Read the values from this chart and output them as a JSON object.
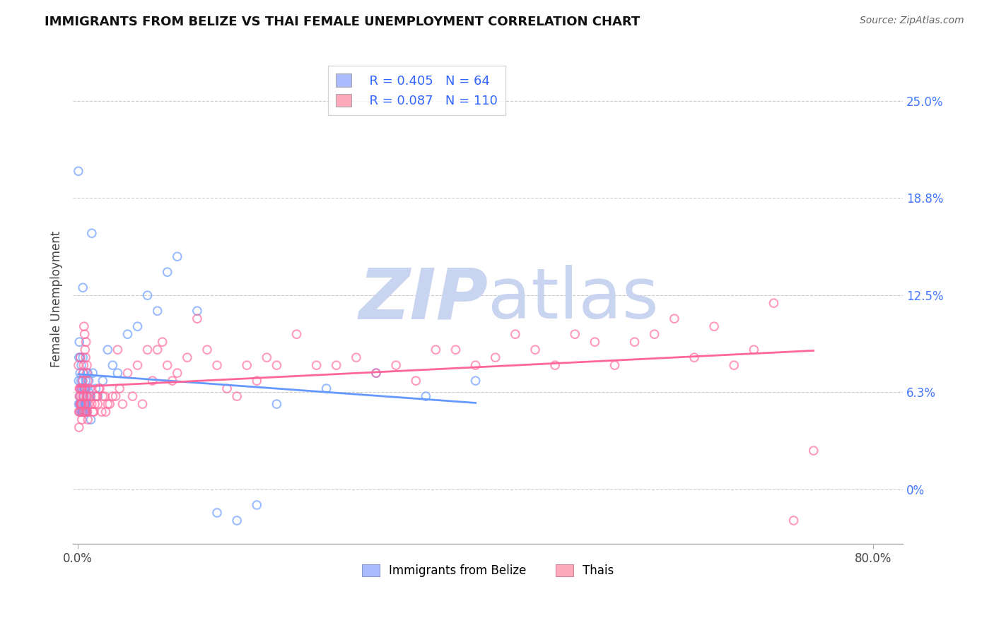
{
  "title": "IMMIGRANTS FROM BELIZE VS THAI FEMALE UNEMPLOYMENT CORRELATION CHART",
  "source": "Source: ZipAtlas.com",
  "ylabel": "Female Unemployment",
  "y_right_labels": [
    "0%",
    "6.3%",
    "12.5%",
    "18.8%",
    "25.0%"
  ],
  "y_right_values": [
    0.0,
    6.3,
    12.5,
    18.8,
    25.0
  ],
  "ylim": [
    -3.5,
    28.0
  ],
  "xlim": [
    -0.5,
    83.0
  ],
  "series": [
    {
      "name": "Immigrants from Belize",
      "color": "#6699ff",
      "R": 0.405,
      "N": 64,
      "x": [
        0.05,
        0.08,
        0.1,
        0.12,
        0.15,
        0.18,
        0.2,
        0.22,
        0.25,
        0.28,
        0.3,
        0.32,
        0.35,
        0.38,
        0.4,
        0.42,
        0.45,
        0.48,
        0.5,
        0.52,
        0.55,
        0.58,
        0.6,
        0.62,
        0.65,
        0.68,
        0.7,
        0.72,
        0.75,
        0.78,
        0.8,
        0.82,
        0.85,
        0.88,
        0.9,
        0.95,
        1.0,
        1.1,
        1.2,
        1.3,
        1.5,
        1.8,
        2.0,
        2.5,
        3.0,
        3.5,
        4.0,
        5.0,
        6.0,
        7.0,
        8.0,
        9.0,
        10.0,
        12.0,
        14.0,
        16.0,
        18.0,
        20.0,
        25.0,
        30.0,
        35.0,
        40.0,
        1.4,
        0.5
      ],
      "y": [
        20.5,
        7.0,
        5.5,
        8.5,
        9.5,
        6.0,
        5.5,
        7.5,
        8.5,
        5.0,
        5.5,
        7.0,
        8.0,
        6.5,
        6.5,
        5.0,
        5.0,
        7.0,
        8.5,
        5.5,
        5.0,
        7.5,
        6.5,
        6.0,
        6.5,
        5.0,
        5.5,
        6.5,
        5.5,
        7.0,
        5.0,
        5.5,
        6.5,
        5.5,
        5.0,
        6.0,
        7.5,
        7.0,
        6.0,
        4.5,
        7.5,
        6.5,
        6.0,
        7.0,
        9.0,
        8.0,
        7.5,
        10.0,
        10.5,
        12.5,
        11.5,
        14.0,
        15.0,
        11.5,
        -1.5,
        -2.0,
        -1.0,
        5.5,
        6.5,
        7.5,
        6.0,
        7.0,
        16.5,
        13.0
      ]
    },
    {
      "name": "Thais",
      "color": "#ff6699",
      "R": 0.087,
      "N": 110,
      "x": [
        0.05,
        0.1,
        0.15,
        0.2,
        0.25,
        0.3,
        0.35,
        0.4,
        0.45,
        0.5,
        0.55,
        0.6,
        0.65,
        0.7,
        0.75,
        0.8,
        0.85,
        0.9,
        0.95,
        1.0,
        1.1,
        1.2,
        1.4,
        1.6,
        1.8,
        2.0,
        2.2,
        2.5,
        2.8,
        3.0,
        3.5,
        4.0,
        4.5,
        5.0,
        5.5,
        6.0,
        6.5,
        7.0,
        7.5,
        8.0,
        8.5,
        9.0,
        9.5,
        10.0,
        11.0,
        12.0,
        13.0,
        14.0,
        15.0,
        16.0,
        17.0,
        18.0,
        19.0,
        20.0,
        22.0,
        24.0,
        26.0,
        28.0,
        30.0,
        32.0,
        34.0,
        36.0,
        38.0,
        40.0,
        42.0,
        44.0,
        46.0,
        48.0,
        50.0,
        52.0,
        54.0,
        56.0,
        58.0,
        60.0,
        62.0,
        64.0,
        66.0,
        68.0,
        70.0,
        72.0,
        0.12,
        0.16,
        0.19,
        0.23,
        0.27,
        0.32,
        0.38,
        0.42,
        0.48,
        0.52,
        0.58,
        0.62,
        0.68,
        0.72,
        0.78,
        0.82,
        0.88,
        0.92,
        0.98,
        1.3,
        1.5,
        1.7,
        1.9,
        2.1,
        2.4,
        2.7,
        3.2,
        3.8,
        4.2,
        74.0
      ],
      "y": [
        8.0,
        5.0,
        6.0,
        6.5,
        8.5,
        5.5,
        5.5,
        4.5,
        6.5,
        7.5,
        6.0,
        5.0,
        5.5,
        5.0,
        6.5,
        6.0,
        5.0,
        6.0,
        5.0,
        4.5,
        5.5,
        6.5,
        5.5,
        5.0,
        6.0,
        5.5,
        6.5,
        6.0,
        5.0,
        5.5,
        6.0,
        9.0,
        5.5,
        7.5,
        6.0,
        8.0,
        5.5,
        9.0,
        7.0,
        9.0,
        9.5,
        8.0,
        7.0,
        7.5,
        8.5,
        11.0,
        9.0,
        8.0,
        6.5,
        6.0,
        8.0,
        7.0,
        8.5,
        8.0,
        10.0,
        8.0,
        8.0,
        8.5,
        7.5,
        8.0,
        7.0,
        9.0,
        9.0,
        8.0,
        8.5,
        10.0,
        9.0,
        8.0,
        10.0,
        9.5,
        8.0,
        9.5,
        10.0,
        11.0,
        8.5,
        10.5,
        8.0,
        9.0,
        12.0,
        -2.0,
        4.0,
        6.5,
        5.0,
        5.5,
        6.5,
        6.0,
        5.0,
        5.5,
        7.0,
        6.0,
        8.0,
        10.5,
        10.0,
        9.0,
        8.5,
        9.5,
        7.5,
        8.0,
        7.0,
        6.0,
        5.0,
        5.5,
        6.0,
        6.5,
        5.0,
        6.0,
        5.5,
        6.0,
        6.5,
        2.5
      ]
    }
  ],
  "legend_box_colors": [
    "#aabbff",
    "#ffaabb"
  ],
  "watermark_zip": "ZIP",
  "watermark_atlas": "atlas",
  "watermark_color_zip": "#c8d4f0",
  "watermark_color_atlas": "#c8d4f0",
  "background_color": "#ffffff",
  "grid_color": "#cccccc",
  "title_color": "#111111",
  "source_color": "#666666",
  "axis_label_color": "#444444",
  "right_label_color": "#4477ff",
  "legend_text_color": "#3366ff"
}
